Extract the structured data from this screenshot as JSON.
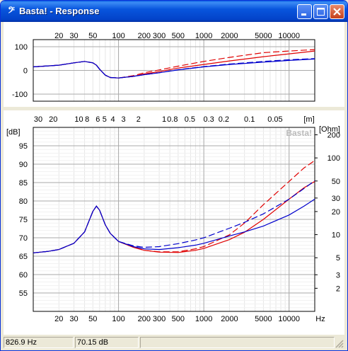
{
  "window": {
    "app_icon": "bass-clef-icon",
    "title": "Basta! - Response",
    "buttons": [
      "minimize",
      "maximize",
      "close"
    ]
  },
  "phase_panel": {
    "freq_ticks": [
      "20",
      "30",
      "50",
      "100",
      "200",
      "300",
      "500",
      "1000",
      "2000",
      "5000",
      "10000"
    ],
    "y_ticks": [
      "100",
      "0",
      "-100"
    ]
  },
  "main_panel": {
    "wavelength_labels": [
      "30",
      "20",
      "10",
      "8",
      "6",
      "5",
      "4",
      "3",
      "2",
      "1",
      "0.8",
      "0.5",
      "0.3",
      "0.2",
      "0.1",
      "0.05",
      "[m]"
    ],
    "left_unit": "[dB]",
    "left_ticks": [
      "95",
      "90",
      "85",
      "80",
      "75",
      "70",
      "65",
      "60",
      "55"
    ],
    "right_unit": "[Ohm]",
    "right_ticks": [
      "200",
      "100",
      "50",
      "30",
      "20",
      "10",
      "5",
      "3",
      "2"
    ],
    "watermark": "Basta!",
    "freq_ticks": [
      "20",
      "30",
      "50",
      "100",
      "200",
      "300",
      "500",
      "1000",
      "2000",
      "5000",
      "10000",
      "Hz"
    ]
  },
  "status": {
    "frequency": "826.9 Hz",
    "level": "70.15 dB"
  },
  "colors": {
    "titlebar": "#0a5fe3",
    "grid_major": "#aaaaaa",
    "grid_minor": "#e6e6e6",
    "series_red": "#e00000",
    "series_blue": "#0000cc"
  },
  "chart_data": [
    {
      "type": "line",
      "title": "",
      "xscale": "log",
      "xlim": [
        10,
        20000
      ],
      "ylim": [
        -130,
        130
      ],
      "grid": true,
      "series": [
        {
          "color": "#e00000",
          "style": "solid",
          "x": [
            10,
            20,
            30,
            40,
            50,
            55,
            60,
            70,
            80,
            100,
            150,
            200,
            300,
            500,
            1000,
            2000,
            5000,
            10000,
            20000
          ],
          "y": [
            15,
            22,
            32,
            38,
            32,
            22,
            5,
            -20,
            -30,
            -32,
            -25,
            -15,
            -5,
            10,
            25,
            40,
            58,
            70,
            82
          ]
        },
        {
          "color": "#e00000",
          "style": "dashed",
          "x": [
            10,
            20,
            30,
            40,
            50,
            55,
            60,
            70,
            80,
            100,
            150,
            200,
            300,
            500,
            1000,
            2000,
            5000,
            10000,
            20000
          ],
          "y": [
            15,
            22,
            32,
            38,
            32,
            22,
            5,
            -20,
            -30,
            -32,
            -22,
            -10,
            2,
            18,
            38,
            55,
            75,
            82,
            88
          ]
        },
        {
          "color": "#0000cc",
          "style": "solid",
          "x": [
            10,
            20,
            30,
            40,
            50,
            55,
            60,
            70,
            80,
            100,
            150,
            200,
            300,
            500,
            1000,
            2000,
            5000,
            10000,
            20000
          ],
          "y": [
            15,
            22,
            32,
            38,
            32,
            22,
            5,
            -20,
            -30,
            -32,
            -25,
            -18,
            -10,
            2,
            15,
            25,
            35,
            42,
            48
          ]
        },
        {
          "color": "#0000cc",
          "style": "dashed",
          "x": [
            10,
            20,
            30,
            40,
            50,
            55,
            60,
            70,
            80,
            100,
            150,
            200,
            300,
            500,
            1000,
            2000,
            5000,
            10000,
            20000
          ],
          "y": [
            15,
            22,
            32,
            38,
            32,
            22,
            5,
            -20,
            -30,
            -32,
            -25,
            -18,
            -10,
            3,
            16,
            27,
            38,
            45,
            50
          ]
        }
      ]
    },
    {
      "type": "line",
      "title": "",
      "xscale": "log",
      "xlim": [
        10,
        20000
      ],
      "ylim": [
        50,
        100
      ],
      "grid": true,
      "series": [
        {
          "color": "#e00000",
          "style": "solid",
          "x": [
            10,
            15,
            20,
            30,
            40,
            50,
            55,
            60,
            70,
            80,
            100,
            150,
            200,
            300,
            500,
            800,
            1000,
            2000,
            3000,
            5000,
            10000,
            15000,
            20000
          ],
          "y": [
            65.9,
            66.3,
            66.8,
            68.5,
            71.6,
            77.2,
            78.6,
            77.5,
            73.5,
            71.2,
            69.0,
            67.4,
            66.6,
            66.1,
            66.0,
            66.6,
            67.1,
            69.5,
            71.5,
            75,
            80.5,
            83.6,
            85.3
          ]
        },
        {
          "color": "#e00000",
          "style": "dashed",
          "x": [
            10,
            15,
            20,
            30,
            40,
            50,
            55,
            60,
            70,
            80,
            100,
            150,
            200,
            300,
            500,
            800,
            1000,
            2000,
            3000,
            5000,
            10000,
            15000,
            20000
          ],
          "y": [
            65.9,
            66.3,
            66.8,
            68.5,
            71.6,
            77.2,
            78.6,
            77.5,
            73.5,
            71.2,
            69.0,
            67.4,
            66.6,
            66.2,
            66.2,
            67.0,
            67.6,
            70.8,
            74.0,
            79.0,
            85.3,
            89.0,
            91.0
          ]
        },
        {
          "color": "#0000cc",
          "style": "solid",
          "x": [
            10,
            15,
            20,
            30,
            40,
            50,
            55,
            60,
            70,
            80,
            100,
            150,
            200,
            300,
            500,
            800,
            1000,
            2000,
            3000,
            5000,
            10000,
            15000,
            20000
          ],
          "y": [
            65.9,
            66.3,
            66.8,
            68.5,
            71.6,
            77.2,
            78.6,
            77.5,
            73.5,
            71.2,
            69.0,
            67.6,
            67.0,
            66.8,
            67.3,
            68.0,
            68.5,
            70.5,
            71.6,
            73.2,
            76.2,
            78.6,
            80.5
          ]
        },
        {
          "color": "#0000cc",
          "style": "dashed",
          "x": [
            10,
            15,
            20,
            30,
            40,
            50,
            55,
            60,
            70,
            80,
            100,
            150,
            200,
            300,
            500,
            800,
            1000,
            2000,
            3000,
            5000,
            10000,
            15000,
            20000
          ],
          "y": [
            65.9,
            66.3,
            66.8,
            68.5,
            71.6,
            77.2,
            78.6,
            77.5,
            73.5,
            71.2,
            69.0,
            67.8,
            67.4,
            67.6,
            68.4,
            69.4,
            70.0,
            72.6,
            74.2,
            76.5,
            80.5,
            83.4,
            85.5
          ]
        }
      ]
    }
  ]
}
